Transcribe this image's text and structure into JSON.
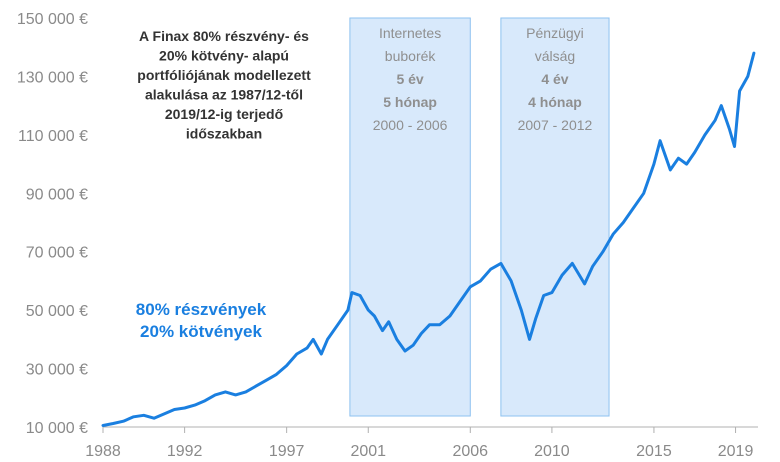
{
  "chart_data": {
    "type": "line",
    "title_lines": [
      "A Finax 80% részvény- és",
      "20% kötvény- alapú",
      "portfóliójának modellezett",
      "alakulása az 1987/12-től",
      "2019/12-ig terjedő",
      "időszakban"
    ],
    "series": [
      {
        "name_lines": [
          "80% részvények",
          "20% kötvények"
        ],
        "color": "#1a7fe0",
        "points": [
          [
            1988.0,
            10500
          ],
          [
            1988.5,
            11200
          ],
          [
            1989.0,
            12000
          ],
          [
            1989.5,
            13500
          ],
          [
            1990.0,
            14000
          ],
          [
            1990.5,
            13000
          ],
          [
            1991.0,
            14500
          ],
          [
            1991.5,
            16000
          ],
          [
            1992.0,
            16500
          ],
          [
            1992.5,
            17500
          ],
          [
            1993.0,
            19000
          ],
          [
            1993.5,
            21000
          ],
          [
            1994.0,
            22000
          ],
          [
            1994.5,
            21000
          ],
          [
            1995.0,
            22000
          ],
          [
            1995.5,
            24000
          ],
          [
            1996.0,
            26000
          ],
          [
            1996.5,
            28000
          ],
          [
            1997.0,
            31000
          ],
          [
            1997.5,
            35000
          ],
          [
            1998.0,
            37000
          ],
          [
            1998.3,
            40000
          ],
          [
            1998.7,
            35000
          ],
          [
            1999.0,
            40000
          ],
          [
            1999.5,
            45000
          ],
          [
            2000.0,
            50000
          ],
          [
            2000.2,
            56000
          ],
          [
            2000.6,
            55000
          ],
          [
            2001.0,
            50000
          ],
          [
            2001.3,
            48000
          ],
          [
            2001.7,
            43000
          ],
          [
            2002.0,
            46000
          ],
          [
            2002.4,
            40000
          ],
          [
            2002.8,
            36000
          ],
          [
            2003.2,
            38000
          ],
          [
            2003.6,
            42000
          ],
          [
            2004.0,
            45000
          ],
          [
            2004.5,
            45000
          ],
          [
            2005.0,
            48000
          ],
          [
            2005.5,
            53000
          ],
          [
            2006.0,
            58000
          ],
          [
            2006.5,
            60000
          ],
          [
            2007.0,
            64000
          ],
          [
            2007.5,
            66000
          ],
          [
            2008.0,
            60000
          ],
          [
            2008.5,
            50000
          ],
          [
            2008.9,
            40000
          ],
          [
            2009.2,
            47000
          ],
          [
            2009.6,
            55000
          ],
          [
            2010.0,
            56000
          ],
          [
            2010.5,
            62000
          ],
          [
            2011.0,
            66000
          ],
          [
            2011.6,
            59000
          ],
          [
            2012.0,
            65000
          ],
          [
            2012.5,
            70000
          ],
          [
            2013.0,
            76000
          ],
          [
            2013.5,
            80000
          ],
          [
            2014.0,
            85000
          ],
          [
            2014.5,
            90000
          ],
          [
            2015.0,
            100000
          ],
          [
            2015.3,
            108000
          ],
          [
            2015.8,
            98000
          ],
          [
            2016.2,
            102000
          ],
          [
            2016.6,
            100000
          ],
          [
            2017.0,
            104000
          ],
          [
            2017.5,
            110000
          ],
          [
            2018.0,
            115000
          ],
          [
            2018.3,
            120000
          ],
          [
            2018.7,
            112000
          ],
          [
            2018.95,
            106000
          ],
          [
            2019.2,
            125000
          ],
          [
            2019.6,
            130000
          ],
          [
            2019.9,
            138000
          ]
        ]
      }
    ],
    "x_ticks": [
      {
        "value": 1988,
        "label": "1988"
      },
      {
        "value": 1992,
        "label": "1992"
      },
      {
        "value": 1997,
        "label": "1997"
      },
      {
        "value": 2001,
        "label": "2001"
      },
      {
        "value": 2006,
        "label": "2006"
      },
      {
        "value": 2010,
        "label": "2010"
      },
      {
        "value": 2015,
        "label": "2015"
      },
      {
        "value": 2019,
        "label": "2019"
      }
    ],
    "y_ticks": [
      {
        "value": 10000,
        "label": "10 000 €"
      },
      {
        "value": 30000,
        "label": "30 000 €"
      },
      {
        "value": 50000,
        "label": "50 000 €"
      },
      {
        "value": 70000,
        "label": "70 000 €"
      },
      {
        "value": 90000,
        "label": "90 000 €"
      },
      {
        "value": 110000,
        "label": "110 000 €"
      },
      {
        "value": 130000,
        "label": "130 000 €"
      },
      {
        "value": 150000,
        "label": "150 000 €"
      }
    ],
    "xlim": [
      1988,
      2020.1
    ],
    "ylim": [
      10000,
      150000
    ],
    "grid": false,
    "highlight_periods": [
      {
        "start": 2000.1,
        "end": 2006.0,
        "lines": [
          {
            "text": "Internetes",
            "bold": false
          },
          {
            "text": "buborék",
            "bold": false
          },
          {
            "text": "5 év",
            "bold": true
          },
          {
            "text": "5 hónap",
            "bold": true
          },
          {
            "text": "2000 - 2006",
            "bold": false
          }
        ]
      },
      {
        "start": 2007.5,
        "end": 2012.8,
        "lines": [
          {
            "text": "Pénzügyi",
            "bold": false
          },
          {
            "text": "válság",
            "bold": false
          },
          {
            "text": "4 év",
            "bold": true
          },
          {
            "text": "4 hónap",
            "bold": true
          },
          {
            "text": "2007 - 2012",
            "bold": false
          }
        ]
      }
    ],
    "colors": {
      "line": "#1a7fe0",
      "band_fill": "#d8e9fb",
      "band_stroke": "#8ec2f0",
      "axis": "#b0b0b0"
    }
  }
}
